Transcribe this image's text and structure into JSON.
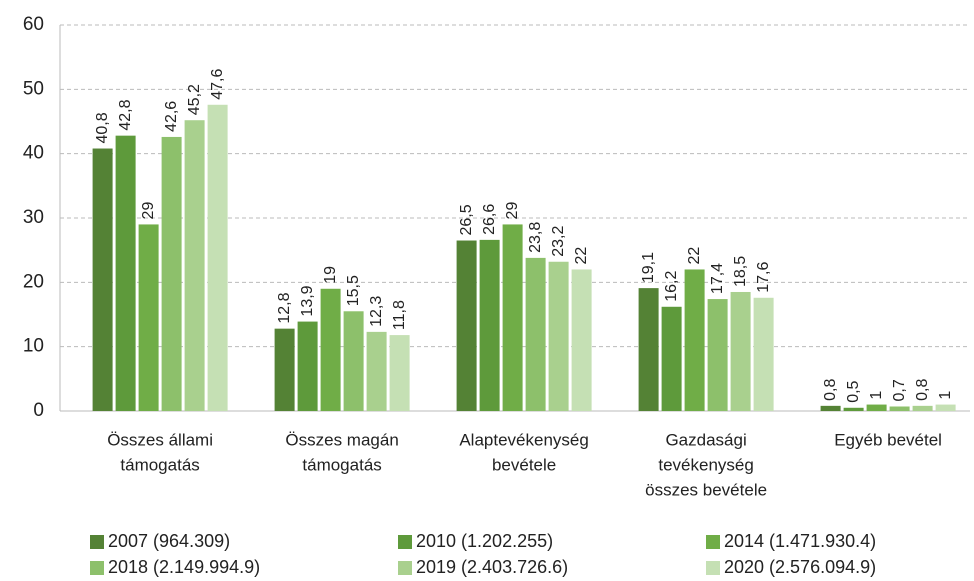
{
  "chart_data": {
    "type": "bar",
    "categories": [
      [
        "Összes állami",
        "támogatás"
      ],
      [
        "Összes magán",
        "támogatás"
      ],
      [
        "Alaptevékenység",
        "bevétele"
      ],
      [
        "Gazdasági",
        "tevékenység",
        "összes bevétele"
      ],
      [
        "Egyéb bevétel"
      ]
    ],
    "series": [
      {
        "name": "2007 (964.309)",
        "color": "#548235",
        "values": [
          40.8,
          12.8,
          26.5,
          19.1,
          0.8
        ],
        "value_labels": [
          "40,8",
          "12,8",
          "26,5",
          "19,1",
          "0,8"
        ]
      },
      {
        "name": "2010 (1.202.255)",
        "color": "#5e9a3b",
        "values": [
          42.8,
          13.9,
          26.6,
          16.2,
          0.5
        ],
        "value_labels": [
          "42,8",
          "13,9",
          "26,6",
          "16,2",
          "0,5"
        ]
      },
      {
        "name": "2014 (1.471.930.4)",
        "color": "#70ad47",
        "values": [
          29,
          19,
          29,
          22,
          1
        ],
        "value_labels": [
          "29",
          "19",
          "29",
          "22",
          "1"
        ]
      },
      {
        "name": "2018 (2.149.994.9)",
        "color": "#8dc06b",
        "values": [
          42.6,
          15.5,
          23.8,
          17.4,
          0.7
        ],
        "value_labels": [
          "42,6",
          "15,5",
          "23,8",
          "17,4",
          "0,7"
        ]
      },
      {
        "name": "2019 (2.403.726.6)",
        "color": "#a9d08e",
        "values": [
          45.2,
          12.3,
          23.2,
          18.5,
          0.8
        ],
        "value_labels": [
          "45,2",
          "12,3",
          "23,2",
          "18,5",
          "0,8"
        ]
      },
      {
        "name": "2020 (2.576.094.9)",
        "color": "#c5e0b4",
        "values": [
          47.6,
          11.8,
          22,
          17.6,
          1
        ],
        "value_labels": [
          "47,6",
          "11,8",
          "22",
          "17,6",
          "1"
        ]
      }
    ],
    "ylim": [
      0,
      60
    ],
    "yticks": [
      0,
      10,
      20,
      30,
      40,
      50,
      60
    ],
    "grid": true,
    "legend": "bottom"
  }
}
